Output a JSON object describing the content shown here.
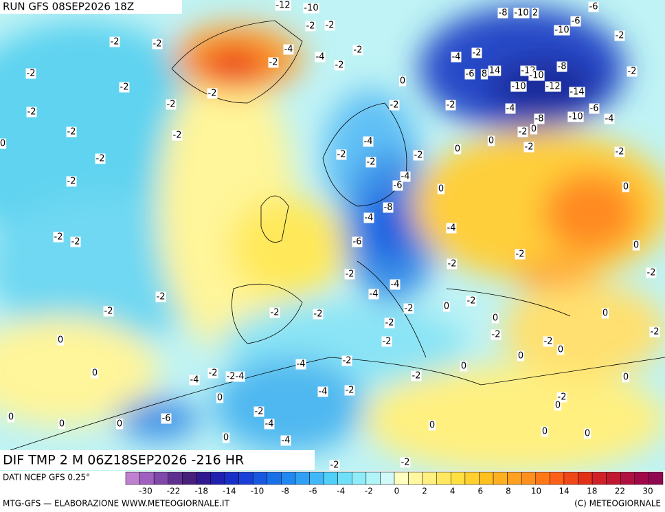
{
  "header": {
    "run": "RUN GFS 08SEP2026 18Z",
    "field": "DIF TMP 2 M 06Z18SEP2026 -216 HR"
  },
  "footer": {
    "source": "DATI NCEP GFS 0.25°",
    "credit": "MTG-GFS — ELABORAZIONE WWW.METEOGIORNALE.IT",
    "copyright": "(C) METEOGIORNALE"
  },
  "colorbar": {
    "ticks": [
      -30,
      -22,
      -18,
      -14,
      -10,
      -8,
      -6,
      -4,
      -2,
      0,
      2,
      4,
      6,
      8,
      10,
      14,
      18,
      22,
      30
    ],
    "colors": [
      "#c080d0",
      "#a060c0",
      "#8048a8",
      "#603090",
      "#48207a",
      "#301890",
      "#2020b0",
      "#1830c8",
      "#1840d8",
      "#1858e0",
      "#1870e8",
      "#2088f0",
      "#30a0f5",
      "#40b8f8",
      "#50cff8",
      "#70e0f8",
      "#90ecf8",
      "#b0f4f8",
      "#d0fafa",
      "#ffffc0",
      "#fff8a0",
      "#fff080",
      "#ffe860",
      "#ffe040",
      "#ffd030",
      "#ffc020",
      "#ffb020",
      "#ffa020",
      "#ff9020",
      "#ff7818",
      "#ff6018",
      "#f04818",
      "#e03018",
      "#d02028",
      "#c01830",
      "#b01040",
      "#a00848",
      "#900850"
    ]
  },
  "map": {
    "labels": [
      "-12",
      "-10",
      "-2",
      "-2",
      "-2",
      "-2",
      "-4",
      "-2",
      "-4",
      "-2",
      "-2",
      "-2",
      "-2",
      "-2",
      "-2",
      "0",
      "-2",
      "-2",
      "-2",
      "0",
      "-2",
      "-2",
      "-2",
      "-2",
      "-4",
      "-2",
      "-2",
      "-2",
      "-4",
      "-6",
      "0",
      "-8",
      "-4",
      "-4",
      "-6",
      "-2",
      "-2",
      "-2",
      "-2",
      "-2",
      "-2",
      "-4",
      "-4",
      "-2",
      "-2",
      "-2",
      "-2",
      "0",
      "-2",
      "0",
      "-2",
      "-2",
      "-4",
      "0",
      "-2",
      "-2",
      "-4",
      "-4",
      "0",
      "-2",
      "0",
      "-4",
      "-2",
      "-2",
      "-4",
      "-6",
      "0",
      "0",
      "0",
      "0",
      "-4",
      "0",
      "-2",
      "-2",
      "-6",
      "-8",
      "-10",
      "2",
      "-6",
      "-10",
      "-2",
      "-4",
      "-2",
      "-6",
      "8",
      "14",
      "-12",
      "-10",
      "-8",
      "-2",
      "-10",
      "-12",
      "-14",
      "-4",
      "-8",
      "-10",
      "-6",
      "-4",
      "0",
      "-2",
      "-2",
      "0",
      "0",
      "-2",
      "0",
      "0",
      "-2",
      "-2",
      "0",
      "0",
      "-2",
      "-2",
      "0",
      "0",
      "-2",
      "0",
      "-2",
      "0",
      "0",
      "0"
    ]
  }
}
